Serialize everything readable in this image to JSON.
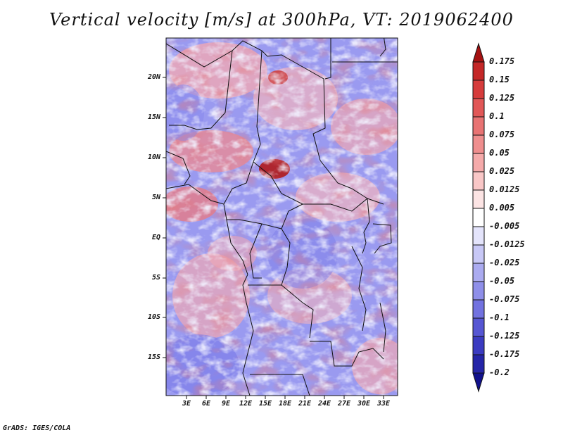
{
  "title": "Vertical velocity [m/s] at 300hPa, VT: 2019062400",
  "footer": "GrADS: IGES/COLA",
  "map": {
    "region": "Central Africa",
    "lat_ticks": [
      "20N",
      "15N",
      "10N",
      "5N",
      "EQ",
      "5S",
      "10S",
      "15S"
    ],
    "lon_ticks": [
      "3E",
      "6E",
      "9E",
      "12E",
      "15E",
      "18E",
      "21E",
      "24E",
      "27E",
      "30E",
      "33E"
    ]
  },
  "colorbar": {
    "labels": [
      "0.175",
      "0.15",
      "0.125",
      "0.1",
      "0.075",
      "0.05",
      "0.025",
      "0.0125",
      "0.005",
      "-0.005",
      "-0.0125",
      "-0.025",
      "-0.05",
      "-0.075",
      "-0.1",
      "-0.125",
      "-0.175",
      "-0.2"
    ],
    "colors": [
      "#a51111",
      "#c42727",
      "#d63c3c",
      "#e15757",
      "#e87373",
      "#ef8e8e",
      "#f5aaaa",
      "#f9c7c7",
      "#fce4e4",
      "#ffffff",
      "#e4e4fb",
      "#c8c8f6",
      "#ababf0",
      "#8f8fe9",
      "#7272e0",
      "#5656d3",
      "#3b3bc1",
      "#2525a8",
      "#11118c"
    ]
  }
}
